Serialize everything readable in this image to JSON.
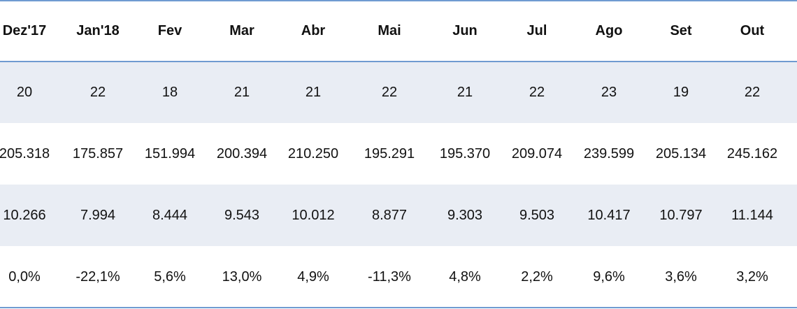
{
  "table": {
    "header": [
      "Dez'17",
      "Jan'18",
      "Fev",
      "Mar",
      "Abr",
      "Mai",
      "Jun",
      "Jul",
      "Ago",
      "Set",
      "Out"
    ],
    "rows": [
      [
        "20",
        "22",
        "18",
        "21",
        "21",
        "22",
        "21",
        "22",
        "23",
        "19",
        "22"
      ],
      [
        "205.318",
        "175.857",
        "151.994",
        "200.394",
        "210.250",
        "195.291",
        "195.370",
        "209.074",
        "239.599",
        "205.134",
        "245.162"
      ],
      [
        "10.266",
        "7.994",
        "8.444",
        "9.543",
        "10.012",
        "8.877",
        "9.303",
        "9.503",
        "10.417",
        "10.797",
        "11.144"
      ],
      [
        "0,0%",
        "-22,1%",
        "5,6%",
        "13,0%",
        "4,9%",
        "-11,3%",
        "4,8%",
        "2,2%",
        "9,6%",
        "3,6%",
        "3,2%"
      ]
    ]
  }
}
